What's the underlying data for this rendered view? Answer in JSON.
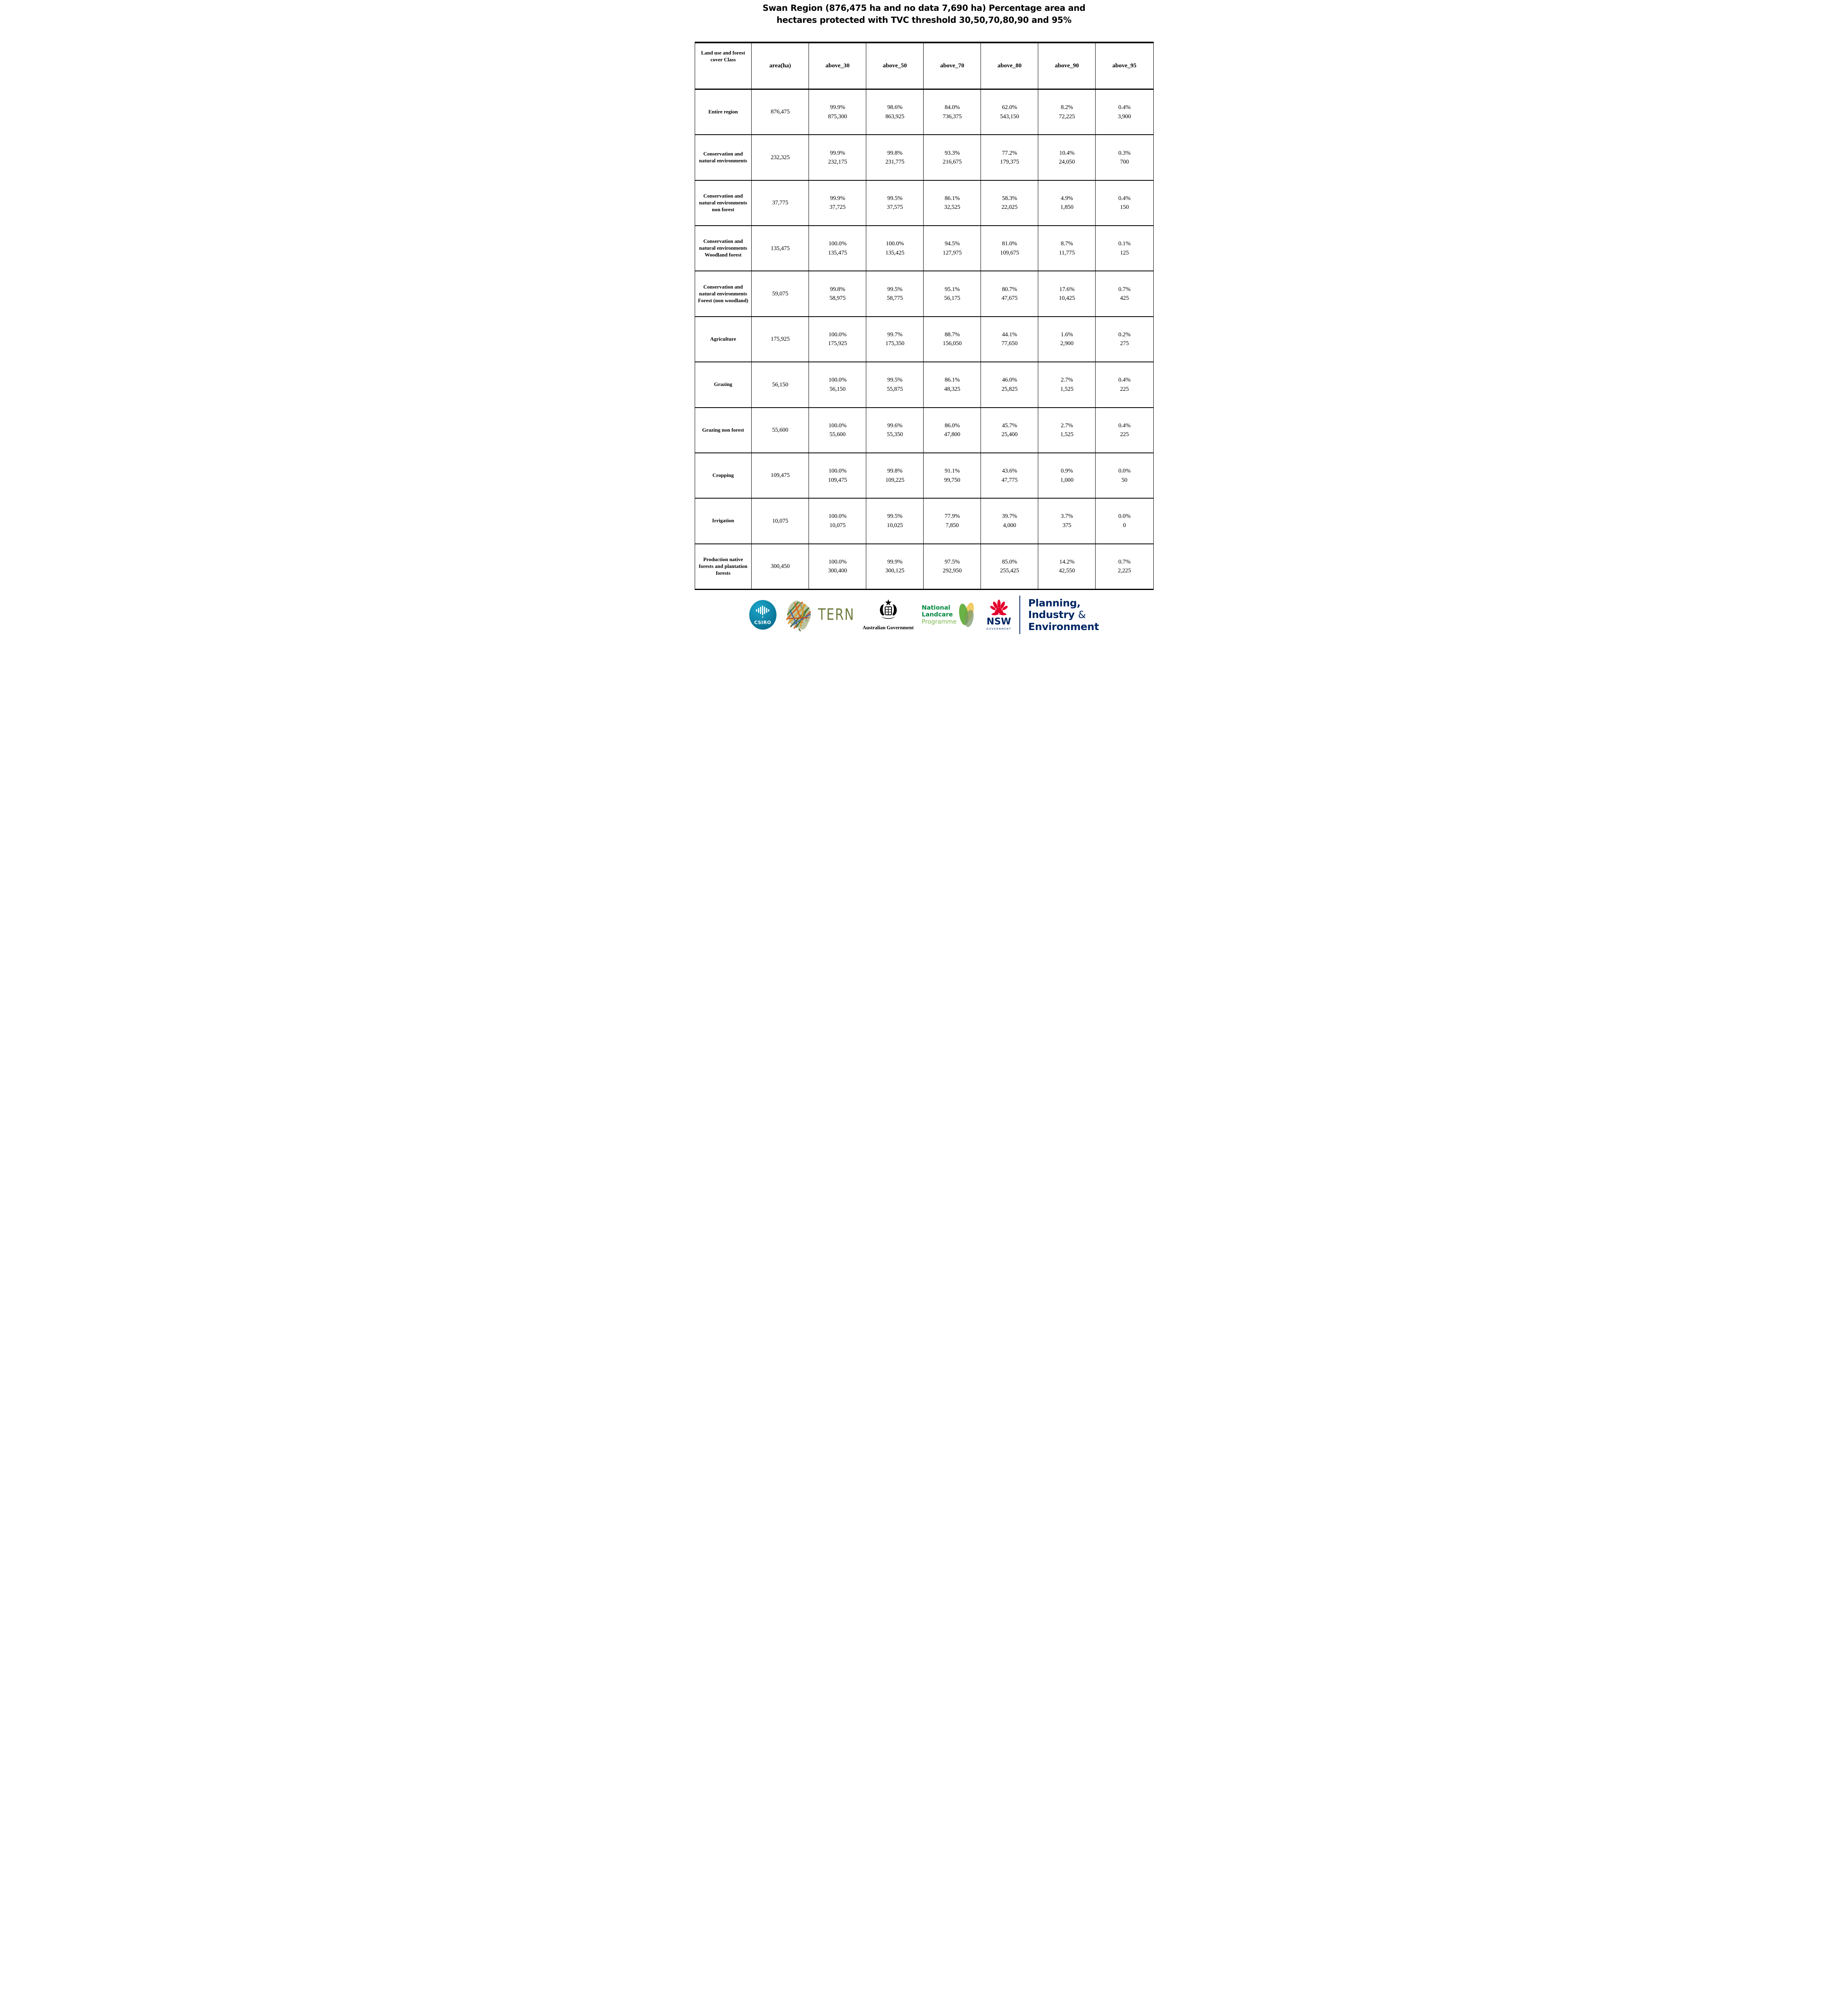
{
  "title": {
    "line1": "Swan Region (876,475 ha and no data 7,690 ha) Percentage area and",
    "line2": "hectares protected with TVC threshold 30,50,70,80,90 and 95%"
  },
  "table": {
    "header": [
      "Land use and forest cover Class",
      "area(ha)",
      "above_30",
      "above_50",
      "above_70",
      "above_80",
      "above_90",
      "above_95"
    ],
    "rows": [
      {
        "label": "Entire region",
        "area": "876,475",
        "cells": [
          {
            "pct": "99.9%",
            "ha": "875,300"
          },
          {
            "pct": "98.6%",
            "ha": "863,925"
          },
          {
            "pct": "84.0%",
            "ha": "736,375"
          },
          {
            "pct": "62.0%",
            "ha": "543,150"
          },
          {
            "pct": "8.2%",
            "ha": "72,225"
          },
          {
            "pct": "0.4%",
            "ha": "3,900"
          }
        ]
      },
      {
        "label": "Conservation and natural environments",
        "area": "232,325",
        "cells": [
          {
            "pct": "99.9%",
            "ha": "232,175"
          },
          {
            "pct": "99.8%",
            "ha": "231,775"
          },
          {
            "pct": "93.3%",
            "ha": "216,675"
          },
          {
            "pct": "77.2%",
            "ha": "179,375"
          },
          {
            "pct": "10.4%",
            "ha": "24,050"
          },
          {
            "pct": "0.3%",
            "ha": "700"
          }
        ]
      },
      {
        "label": "Conservation and natural environments non forest",
        "area": "37,775",
        "cells": [
          {
            "pct": "99.9%",
            "ha": "37,725"
          },
          {
            "pct": "99.5%",
            "ha": "37,575"
          },
          {
            "pct": "86.1%",
            "ha": "32,525"
          },
          {
            "pct": "58.3%",
            "ha": "22,025"
          },
          {
            "pct": "4.9%",
            "ha": "1,850"
          },
          {
            "pct": "0.4%",
            "ha": "150"
          }
        ]
      },
      {
        "label": "Conservation and natural environments Woodland forest",
        "area": "135,475",
        "cells": [
          {
            "pct": "100.0%",
            "ha": "135,475"
          },
          {
            "pct": "100.0%",
            "ha": "135,425"
          },
          {
            "pct": "94.5%",
            "ha": "127,975"
          },
          {
            "pct": "81.0%",
            "ha": "109,675"
          },
          {
            "pct": "8.7%",
            "ha": "11,775"
          },
          {
            "pct": "0.1%",
            "ha": "125"
          }
        ]
      },
      {
        "label": "Conservation and natural environments Forest (non woodland)",
        "area": "59,075",
        "cells": [
          {
            "pct": "99.8%",
            "ha": "58,975"
          },
          {
            "pct": "99.5%",
            "ha": "58,775"
          },
          {
            "pct": "95.1%",
            "ha": "56,175"
          },
          {
            "pct": "80.7%",
            "ha": "47,675"
          },
          {
            "pct": "17.6%",
            "ha": "10,425"
          },
          {
            "pct": "0.7%",
            "ha": "425"
          }
        ]
      },
      {
        "label": "Agriculture",
        "area": "175,925",
        "cells": [
          {
            "pct": "100.0%",
            "ha": "175,925"
          },
          {
            "pct": "99.7%",
            "ha": "175,350"
          },
          {
            "pct": "88.7%",
            "ha": "156,050"
          },
          {
            "pct": "44.1%",
            "ha": "77,650"
          },
          {
            "pct": "1.6%",
            "ha": "2,900"
          },
          {
            "pct": "0.2%",
            "ha": "275"
          }
        ]
      },
      {
        "label": "Grazing",
        "area": "56,150",
        "cells": [
          {
            "pct": "100.0%",
            "ha": "56,150"
          },
          {
            "pct": "99.5%",
            "ha": "55,875"
          },
          {
            "pct": "86.1%",
            "ha": "48,325"
          },
          {
            "pct": "46.0%",
            "ha": "25,825"
          },
          {
            "pct": "2.7%",
            "ha": "1,525"
          },
          {
            "pct": "0.4%",
            "ha": "225"
          }
        ]
      },
      {
        "label": "Grazing non forest",
        "area": "55,600",
        "cells": [
          {
            "pct": "100.0%",
            "ha": "55,600"
          },
          {
            "pct": "99.6%",
            "ha": "55,350"
          },
          {
            "pct": "86.0%",
            "ha": "47,800"
          },
          {
            "pct": "45.7%",
            "ha": "25,400"
          },
          {
            "pct": "2.7%",
            "ha": "1,525"
          },
          {
            "pct": "0.4%",
            "ha": "225"
          }
        ]
      },
      {
        "label": "Cropping",
        "area": "109,475",
        "cells": [
          {
            "pct": "100.0%",
            "ha": "109,475"
          },
          {
            "pct": "99.8%",
            "ha": "109,225"
          },
          {
            "pct": "91.1%",
            "ha": "99,750"
          },
          {
            "pct": "43.6%",
            "ha": "47,775"
          },
          {
            "pct": "0.9%",
            "ha": "1,000"
          },
          {
            "pct": "0.0%",
            "ha": "50"
          }
        ]
      },
      {
        "label": "Irrigation",
        "area": "10,075",
        "cells": [
          {
            "pct": "100.0%",
            "ha": "10,075"
          },
          {
            "pct": "99.5%",
            "ha": "10,025"
          },
          {
            "pct": "77.9%",
            "ha": "7,850"
          },
          {
            "pct": "39.7%",
            "ha": "4,000"
          },
          {
            "pct": "3.7%",
            "ha": "375"
          },
          {
            "pct": "0.0%",
            "ha": "0"
          }
        ]
      },
      {
        "label": "Production native forests and plantation forests",
        "area": "300,450",
        "cells": [
          {
            "pct": "100.0%",
            "ha": "300,400"
          },
          {
            "pct": "99.9%",
            "ha": "300,125"
          },
          {
            "pct": "97.5%",
            "ha": "292,950"
          },
          {
            "pct": "85.0%",
            "ha": "255,425"
          },
          {
            "pct": "14.2%",
            "ha": "42,550"
          },
          {
            "pct": "0.7%",
            "ha": "2,225"
          }
        ]
      }
    ]
  },
  "footer": {
    "csiro_label": "CSIRO",
    "tern_label": "TERN",
    "aus_gov_label": "Australian Government",
    "landcare_line1": "National",
    "landcare_line2": "Landcare",
    "landcare_line3": "Programme",
    "nsw_label": "NSW",
    "nsw_sub_label": "GOVERNMENT",
    "pie_line1": "Planning,",
    "pie_line2_word": "Industry",
    "pie_line2_amp": "&",
    "pie_line3": "Environment"
  },
  "colors": {
    "csiro-teal": "#1ba6c9",
    "csiro-teal-dark": "#0a7294",
    "tern-olive": "#6d7c3f",
    "landcare-green": "#00893f",
    "landcare-light-green": "#7ab648",
    "nsw-red": "#e4002b",
    "nsw-navy": "#002664"
  }
}
